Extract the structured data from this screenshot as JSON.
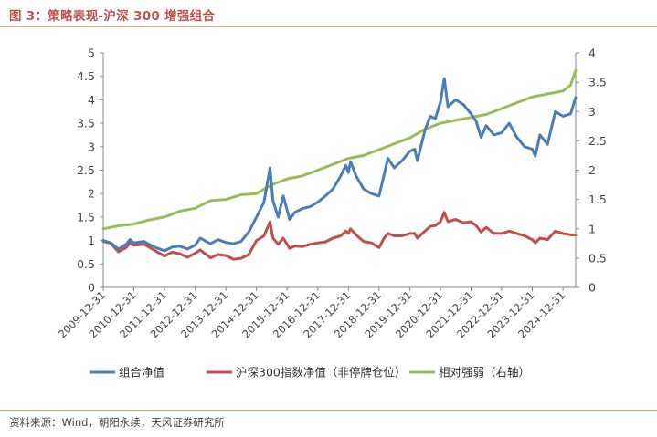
{
  "header": {
    "title": "图 3：策略表现-沪深 300 增强组合"
  },
  "footer": {
    "source": "资料来源：Wind，朝阳永续，天风证券研究所"
  },
  "chart_data": {
    "type": "line",
    "title": "图 3：策略表现-沪深 300 增强组合",
    "x_ticks": [
      "2009-12-31",
      "2010-12-31",
      "2011-12-31",
      "2012-12-31",
      "2013-12-31",
      "2014-12-31",
      "2015-12-31",
      "2016-12-31",
      "2017-12-31",
      "2018-12-31",
      "2019-12-31",
      "2020-12-31",
      "2021-12-31",
      "2022-12-31",
      "2023-12-31",
      "2024-12-31"
    ],
    "x_range": [
      "2009-12-31",
      "2025-05-31"
    ],
    "y_left": {
      "min": 0,
      "max": 5,
      "step": 0.5,
      "ticks": [
        "0",
        "0.5",
        "1",
        "1.5",
        "2",
        "2.5",
        "3",
        "3.5",
        "4",
        "4.5",
        "5"
      ]
    },
    "y_right": {
      "min": 0,
      "max": 4,
      "step": 0.5,
      "ticks": [
        "0",
        "0.5",
        "1",
        "1.5",
        "2",
        "2.5",
        "3",
        "3.5",
        "4"
      ]
    },
    "grid": false,
    "legend_position": "bottom",
    "series": [
      {
        "name": "组合净值",
        "axis": "left",
        "color": "#4a7ebb",
        "points": [
          [
            "2009-12-31",
            1.0
          ],
          [
            "2010-03-31",
            0.95
          ],
          [
            "2010-06-30",
            0.82
          ],
          [
            "2010-09-30",
            0.92
          ],
          [
            "2010-11-15",
            1.02
          ],
          [
            "2010-12-31",
            0.95
          ],
          [
            "2011-04-30",
            0.98
          ],
          [
            "2011-06-30",
            0.92
          ],
          [
            "2011-09-30",
            0.84
          ],
          [
            "2011-12-31",
            0.78
          ],
          [
            "2012-03-31",
            0.86
          ],
          [
            "2012-06-30",
            0.88
          ],
          [
            "2012-09-30",
            0.82
          ],
          [
            "2012-12-31",
            0.9
          ],
          [
            "2013-02-28",
            1.05
          ],
          [
            "2013-06-30",
            0.93
          ],
          [
            "2013-09-30",
            1.02
          ],
          [
            "2013-12-31",
            0.96
          ],
          [
            "2014-03-31",
            0.93
          ],
          [
            "2014-06-30",
            0.98
          ],
          [
            "2014-09-30",
            1.18
          ],
          [
            "2014-12-31",
            1.5
          ],
          [
            "2015-03-31",
            1.82
          ],
          [
            "2015-06-10",
            2.55
          ],
          [
            "2015-07-15",
            1.85
          ],
          [
            "2015-09-15",
            1.5
          ],
          [
            "2015-11-15",
            1.95
          ],
          [
            "2016-01-31",
            1.45
          ],
          [
            "2016-03-31",
            1.6
          ],
          [
            "2016-06-30",
            1.68
          ],
          [
            "2016-09-30",
            1.72
          ],
          [
            "2016-12-31",
            1.82
          ],
          [
            "2017-03-31",
            1.95
          ],
          [
            "2017-06-30",
            2.1
          ],
          [
            "2017-09-30",
            2.38
          ],
          [
            "2017-11-30",
            2.6
          ],
          [
            "2017-12-31",
            2.45
          ],
          [
            "2018-01-25",
            2.68
          ],
          [
            "2018-03-31",
            2.38
          ],
          [
            "2018-06-30",
            2.1
          ],
          [
            "2018-09-30",
            2.0
          ],
          [
            "2018-12-31",
            1.95
          ],
          [
            "2019-02-28",
            2.4
          ],
          [
            "2019-04-15",
            2.75
          ],
          [
            "2019-06-30",
            2.55
          ],
          [
            "2019-09-30",
            2.7
          ],
          [
            "2019-12-31",
            2.9
          ],
          [
            "2020-02-28",
            2.95
          ],
          [
            "2020-03-31",
            2.7
          ],
          [
            "2020-06-30",
            3.35
          ],
          [
            "2020-08-31",
            3.65
          ],
          [
            "2020-10-31",
            3.6
          ],
          [
            "2020-12-31",
            3.95
          ],
          [
            "2021-02-15",
            4.45
          ],
          [
            "2021-03-31",
            3.85
          ],
          [
            "2021-06-30",
            4.0
          ],
          [
            "2021-09-30",
            3.9
          ],
          [
            "2021-12-31",
            3.7
          ],
          [
            "2022-02-28",
            3.55
          ],
          [
            "2022-04-30",
            3.2
          ],
          [
            "2022-06-30",
            3.45
          ],
          [
            "2022-09-30",
            3.25
          ],
          [
            "2022-12-31",
            3.3
          ],
          [
            "2023-03-31",
            3.5
          ],
          [
            "2023-06-30",
            3.2
          ],
          [
            "2023-09-30",
            3.0
          ],
          [
            "2023-12-31",
            2.95
          ],
          [
            "2024-02-05",
            2.8
          ],
          [
            "2024-03-31",
            3.25
          ],
          [
            "2024-06-30",
            3.05
          ],
          [
            "2024-09-30",
            3.75
          ],
          [
            "2024-12-31",
            3.65
          ],
          [
            "2025-03-31",
            3.7
          ],
          [
            "2025-05-31",
            4.05
          ]
        ]
      },
      {
        "name": "沪深300指数净值（非停牌仓位）",
        "axis": "left",
        "color": "#c0504d",
        "points": [
          [
            "2009-12-31",
            0.98
          ],
          [
            "2010-03-31",
            0.94
          ],
          [
            "2010-06-30",
            0.76
          ],
          [
            "2010-09-30",
            0.85
          ],
          [
            "2010-11-15",
            0.95
          ],
          [
            "2010-12-31",
            0.9
          ],
          [
            "2011-04-30",
            0.92
          ],
          [
            "2011-06-30",
            0.86
          ],
          [
            "2011-09-30",
            0.76
          ],
          [
            "2011-12-31",
            0.67
          ],
          [
            "2012-03-31",
            0.75
          ],
          [
            "2012-06-30",
            0.72
          ],
          [
            "2012-09-30",
            0.64
          ],
          [
            "2012-12-31",
            0.73
          ],
          [
            "2013-02-28",
            0.8
          ],
          [
            "2013-06-30",
            0.63
          ],
          [
            "2013-09-30",
            0.7
          ],
          [
            "2013-12-31",
            0.68
          ],
          [
            "2014-03-31",
            0.6
          ],
          [
            "2014-06-30",
            0.62
          ],
          [
            "2014-09-30",
            0.7
          ],
          [
            "2014-12-31",
            1.0
          ],
          [
            "2015-03-31",
            1.1
          ],
          [
            "2015-06-10",
            1.4
          ],
          [
            "2015-07-15",
            1.05
          ],
          [
            "2015-09-15",
            0.92
          ],
          [
            "2015-11-15",
            1.05
          ],
          [
            "2016-01-31",
            0.83
          ],
          [
            "2016-03-31",
            0.88
          ],
          [
            "2016-06-30",
            0.87
          ],
          [
            "2016-09-30",
            0.92
          ],
          [
            "2016-12-31",
            0.95
          ],
          [
            "2017-03-31",
            0.97
          ],
          [
            "2017-06-30",
            1.05
          ],
          [
            "2017-09-30",
            1.1
          ],
          [
            "2017-11-30",
            1.2
          ],
          [
            "2017-12-31",
            1.15
          ],
          [
            "2018-01-25",
            1.25
          ],
          [
            "2018-03-31",
            1.12
          ],
          [
            "2018-06-30",
            0.98
          ],
          [
            "2018-09-30",
            0.95
          ],
          [
            "2018-12-31",
            0.85
          ],
          [
            "2019-02-28",
            1.05
          ],
          [
            "2019-04-15",
            1.15
          ],
          [
            "2019-06-30",
            1.1
          ],
          [
            "2019-09-30",
            1.1
          ],
          [
            "2019-12-31",
            1.15
          ],
          [
            "2020-02-28",
            1.15
          ],
          [
            "2020-03-31",
            1.05
          ],
          [
            "2020-06-30",
            1.2
          ],
          [
            "2020-08-31",
            1.3
          ],
          [
            "2020-10-31",
            1.32
          ],
          [
            "2020-12-31",
            1.4
          ],
          [
            "2021-02-15",
            1.6
          ],
          [
            "2021-03-31",
            1.4
          ],
          [
            "2021-06-30",
            1.45
          ],
          [
            "2021-09-30",
            1.38
          ],
          [
            "2021-12-31",
            1.4
          ],
          [
            "2022-02-28",
            1.32
          ],
          [
            "2022-04-30",
            1.18
          ],
          [
            "2022-06-30",
            1.28
          ],
          [
            "2022-09-30",
            1.15
          ],
          [
            "2022-12-31",
            1.15
          ],
          [
            "2023-03-31",
            1.2
          ],
          [
            "2023-06-30",
            1.15
          ],
          [
            "2023-09-30",
            1.1
          ],
          [
            "2023-12-31",
            1.02
          ],
          [
            "2024-02-05",
            0.95
          ],
          [
            "2024-03-31",
            1.05
          ],
          [
            "2024-06-30",
            1.02
          ],
          [
            "2024-09-30",
            1.2
          ],
          [
            "2024-12-31",
            1.15
          ],
          [
            "2025-03-31",
            1.12
          ],
          [
            "2025-05-31",
            1.12
          ]
        ]
      },
      {
        "name": "相对强弱（右轴）",
        "axis": "right",
        "color": "#9bbb59",
        "points": [
          [
            "2009-12-31",
            1.0
          ],
          [
            "2010-06-30",
            1.05
          ],
          [
            "2010-12-31",
            1.08
          ],
          [
            "2011-06-30",
            1.15
          ],
          [
            "2011-12-31",
            1.2
          ],
          [
            "2012-06-30",
            1.3
          ],
          [
            "2012-12-31",
            1.35
          ],
          [
            "2013-06-30",
            1.48
          ],
          [
            "2013-12-31",
            1.5
          ],
          [
            "2014-06-30",
            1.58
          ],
          [
            "2014-12-31",
            1.6
          ],
          [
            "2015-06-30",
            1.75
          ],
          [
            "2015-12-31",
            1.85
          ],
          [
            "2016-06-30",
            1.9
          ],
          [
            "2016-12-31",
            2.0
          ],
          [
            "2017-06-30",
            2.1
          ],
          [
            "2017-12-31",
            2.2
          ],
          [
            "2018-06-30",
            2.25
          ],
          [
            "2018-12-31",
            2.35
          ],
          [
            "2019-06-30",
            2.45
          ],
          [
            "2019-12-31",
            2.55
          ],
          [
            "2020-06-30",
            2.7
          ],
          [
            "2020-12-31",
            2.8
          ],
          [
            "2021-06-30",
            2.85
          ],
          [
            "2021-12-31",
            2.9
          ],
          [
            "2022-06-30",
            2.95
          ],
          [
            "2022-12-31",
            3.05
          ],
          [
            "2023-06-30",
            3.15
          ],
          [
            "2023-12-31",
            3.25
          ],
          [
            "2024-06-30",
            3.3
          ],
          [
            "2024-12-31",
            3.35
          ],
          [
            "2025-03-31",
            3.45
          ],
          [
            "2025-05-31",
            3.7
          ]
        ]
      }
    ]
  }
}
